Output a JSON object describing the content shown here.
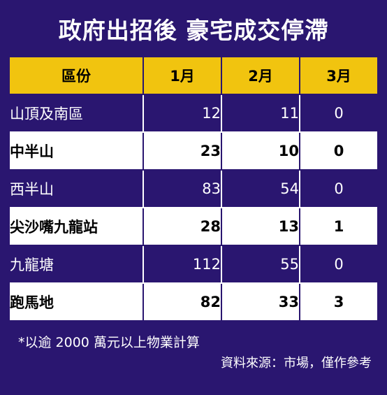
{
  "title": "政府出招後 豪宅成交停滯",
  "table": {
    "headers": [
      "區份",
      "1月",
      "2月",
      "3月"
    ],
    "rows": [
      [
        "山頂及南區",
        "12",
        "11",
        "0"
      ],
      [
        "中半山",
        "23",
        "10",
        "0"
      ],
      [
        "西半山",
        "83",
        "54",
        "0"
      ],
      [
        "尖沙嘴九龍站",
        "28",
        "13",
        "1"
      ],
      [
        "九龍塘",
        "112",
        "55",
        "0"
      ],
      [
        "跑馬地",
        "82",
        "33",
        "3"
      ]
    ]
  },
  "footnote": "*以逾 2000 萬元以上物業計算",
  "source": "資料來源：市場，僅作參考",
  "colors": {
    "background": "#2a1670",
    "header": "#f1c40f"
  }
}
